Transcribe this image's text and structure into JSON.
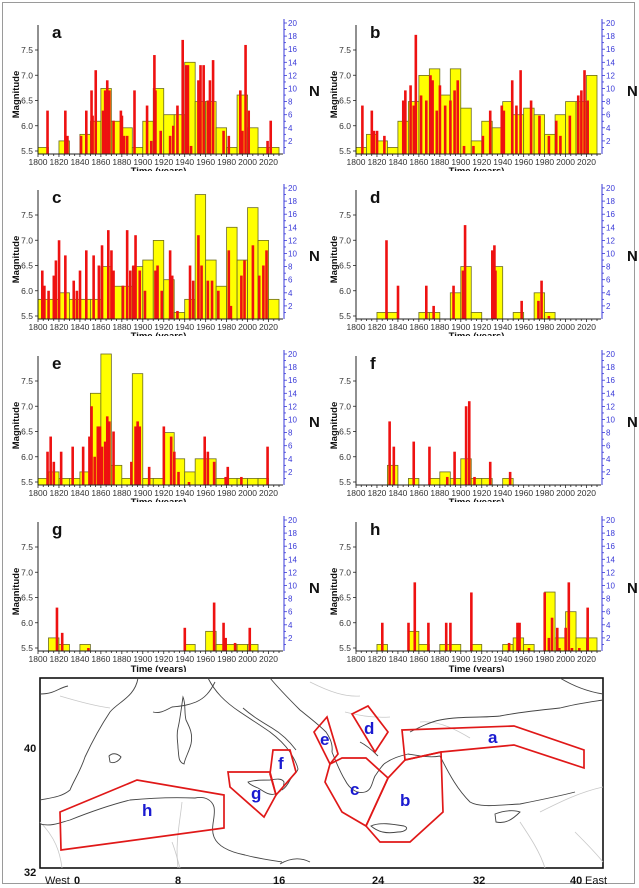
{
  "figure": {
    "map": {
      "lat_labels": [
        "40",
        "32"
      ],
      "lon_labels": [
        "0",
        "8",
        "16",
        "24",
        "32",
        "40"
      ],
      "west_label": "West",
      "east_label": "East",
      "regions": [
        "a",
        "b",
        "c",
        "d",
        "e",
        "f",
        "g",
        "h"
      ]
    }
  },
  "chart_data": [
    {
      "id": "a",
      "type": "bar",
      "title": "a",
      "xlabel": "Time (years)",
      "ylabel": "Magnitude",
      "y2label": "N",
      "xlim": [
        1800,
        2030
      ],
      "ylim": [
        5.4,
        7.9
      ],
      "y2lim": [
        0,
        20
      ],
      "xticks": [
        1800,
        1820,
        1840,
        1860,
        1880,
        1900,
        1920,
        1940,
        1960,
        1980,
        2000,
        2020
      ],
      "yticks": [
        5.5,
        6.0,
        6.5,
        7.0,
        7.5
      ],
      "y2ticks": [
        2,
        4,
        6,
        8,
        10,
        12,
        14,
        16,
        18,
        20
      ],
      "show_xlabel": false,
      "decade_counts": {
        "name": "N (decadal count)",
        "start": [
          1800,
          1820,
          1840,
          1850,
          1860,
          1870,
          1880,
          1890,
          1900,
          1910,
          1920,
          1930,
          1940,
          1950,
          1960,
          1970,
          1980,
          1990,
          2000,
          2010,
          2020
        ],
        "values": [
          1,
          2,
          3,
          5,
          10,
          5,
          4,
          1,
          5,
          10,
          6,
          6,
          14,
          8,
          8,
          4,
          1,
          9,
          4,
          1,
          1
        ]
      },
      "events": {
        "name": "Magnitude",
        "year": [
          1809,
          1826,
          1828,
          1841,
          1846,
          1851,
          1852,
          1855,
          1862,
          1864,
          1866,
          1868,
          1872,
          1879,
          1880,
          1882,
          1885,
          1892,
          1904,
          1908,
          1911,
          1912,
          1917,
          1926,
          1929,
          1933,
          1938,
          1941,
          1943,
          1946,
          1953,
          1955,
          1958,
          1962,
          1964,
          1967,
          1977,
          1982,
          1993,
          1995,
          1998,
          2001,
          2019,
          2022
        ],
        "mag": [
          6.3,
          6.3,
          5.8,
          5.8,
          6.3,
          6.7,
          6.2,
          7.1,
          6.3,
          6.7,
          6.9,
          6.7,
          6.1,
          6.3,
          6.2,
          5.8,
          5.8,
          6.7,
          6.4,
          5.7,
          7.4,
          6.7,
          5.9,
          5.8,
          6.0,
          6.4,
          7.7,
          7.2,
          7.2,
          5.6,
          6.9,
          7.2,
          7.2,
          6.5,
          6.9,
          7.3,
          5.9,
          5.8,
          6.7,
          5.9,
          7.6,
          6.3,
          5.7,
          6.1
        ]
      }
    },
    {
      "id": "b",
      "type": "bar",
      "title": "b",
      "xlabel": "Time (years)",
      "ylabel": "Magnitude",
      "y2label": "N",
      "xlim": [
        1800,
        2030
      ],
      "ylim": [
        5.4,
        7.9
      ],
      "y2lim": [
        0,
        20
      ],
      "xticks": [
        1800,
        1820,
        1840,
        1860,
        1880,
        1900,
        1920,
        1940,
        1960,
        1980,
        2000,
        2020
      ],
      "yticks": [
        5.5,
        6.0,
        6.5,
        7.0,
        7.5
      ],
      "y2ticks": [
        2,
        4,
        6,
        8,
        10,
        12,
        14,
        16,
        18,
        20
      ],
      "show_xlabel": true,
      "decade_counts": {
        "name": "N (decadal count)",
        "start": [
          1800,
          1810,
          1820,
          1830,
          1840,
          1850,
          1860,
          1870,
          1880,
          1890,
          1900,
          1910,
          1920,
          1930,
          1940,
          1950,
          1960,
          1970,
          1980,
          1990,
          2000,
          2010,
          2020
        ],
        "values": [
          1,
          3,
          2,
          1,
          5,
          8,
          12,
          13,
          9,
          13,
          7,
          2,
          5,
          4,
          8,
          6,
          7,
          6,
          3,
          6,
          8,
          8,
          12
        ]
      },
      "events": {
        "name": "Magnitude",
        "year": [
          1806,
          1815,
          1817,
          1820,
          1827,
          1845,
          1847,
          1852,
          1855,
          1857,
          1862,
          1867,
          1871,
          1873,
          1877,
          1880,
          1885,
          1890,
          1894,
          1897,
          1903,
          1912,
          1921,
          1928,
          1939,
          1941,
          1949,
          1953,
          1957,
          1967,
          1975,
          1984,
          1991,
          1995,
          2004,
          2012,
          2015,
          2018,
          2021
        ],
        "mag": [
          6.4,
          6.3,
          5.9,
          5.9,
          5.8,
          6.5,
          6.7,
          6.8,
          6.4,
          7.8,
          6.6,
          6.5,
          7.0,
          6.9,
          6.3,
          6.8,
          6.4,
          6.5,
          6.7,
          6.9,
          5.6,
          5.6,
          5.8,
          6.3,
          6.4,
          6.3,
          6.9,
          6.4,
          7.1,
          6.5,
          6.2,
          5.8,
          6.1,
          5.8,
          6.2,
          6.6,
          6.7,
          7.1,
          6.5
        ]
      }
    },
    {
      "id": "c",
      "type": "bar",
      "title": "c",
      "xlabel": "Time (years)",
      "ylabel": "Magnitude",
      "y2label": "N",
      "xlim": [
        1800,
        2030
      ],
      "ylim": [
        5.4,
        7.9
      ],
      "y2lim": [
        0,
        20
      ],
      "xticks": [
        1800,
        1820,
        1840,
        1860,
        1880,
        1900,
        1920,
        1940,
        1960,
        1980,
        2000,
        2020
      ],
      "yticks": [
        5.5,
        6.0,
        6.5,
        7.0,
        7.5
      ],
      "y2ticks": [
        2,
        4,
        6,
        8,
        10,
        12,
        14,
        16,
        18,
        20
      ],
      "show_xlabel": true,
      "decade_counts": {
        "name": "N (decadal count)",
        "start": [
          1800,
          1810,
          1820,
          1830,
          1840,
          1850,
          1860,
          1870,
          1880,
          1890,
          1900,
          1910,
          1920,
          1930,
          1940,
          1950,
          1960,
          1970,
          1980,
          1990,
          2000,
          2010,
          2020
        ],
        "values": [
          3,
          3,
          4,
          3,
          3,
          3,
          8,
          5,
          5,
          8,
          9,
          12,
          6,
          1,
          3,
          19,
          9,
          5,
          14,
          9,
          17,
          12,
          3
        ]
      },
      "events": {
        "name": "Magnitude",
        "year": [
          1804,
          1806,
          1810,
          1815,
          1817,
          1820,
          1826,
          1834,
          1837,
          1840,
          1846,
          1853,
          1858,
          1861,
          1867,
          1870,
          1872,
          1881,
          1885,
          1888,
          1891,
          1893,
          1897,
          1902,
          1912,
          1914,
          1918,
          1926,
          1928,
          1933,
          1945,
          1948,
          1953,
          1956,
          1962,
          1966,
          1972,
          1982,
          1984,
          1994,
          1997,
          2005,
          2011,
          2015,
          2018
        ],
        "mag": [
          6.4,
          6.1,
          6.0,
          6.3,
          6.6,
          7.0,
          6.7,
          6.2,
          6.0,
          6.4,
          6.8,
          6.7,
          6.5,
          6.9,
          7.2,
          6.8,
          6.4,
          6.1,
          7.2,
          6.4,
          6.5,
          7.1,
          6.4,
          6.0,
          6.4,
          6.5,
          6.0,
          6.8,
          6.3,
          5.6,
          6.5,
          6.2,
          7.1,
          6.5,
          6.2,
          6.2,
          6.0,
          6.8,
          5.7,
          6.3,
          6.6,
          6.9,
          6.3,
          6.5,
          6.8
        ]
      }
    },
    {
      "id": "d",
      "type": "bar",
      "title": "d",
      "xlabel": "Time (years)",
      "ylabel": "Magnitude",
      "y2label": "N",
      "xlim": [
        1800,
        2030
      ],
      "ylim": [
        5.4,
        7.9
      ],
      "y2lim": [
        0,
        20
      ],
      "xticks": [
        1800,
        1820,
        1840,
        1860,
        1880,
        1900,
        1920,
        1940,
        1960,
        1980,
        2000,
        2020
      ],
      "yticks": [
        5.5,
        6.0,
        6.5,
        7.0,
        7.5
      ],
      "y2ticks": [
        2,
        4,
        6,
        8,
        10,
        12,
        14,
        16,
        18,
        20
      ],
      "show_xlabel": true,
      "decade_counts": {
        "name": "N (decadal count)",
        "start": [
          1820,
          1830,
          1860,
          1870,
          1890,
          1900,
          1910,
          1930,
          1950,
          1970,
          1980
        ],
        "values": [
          1,
          1,
          1,
          1,
          4,
          8,
          1,
          8,
          1,
          4,
          1
        ]
      },
      "events": {
        "name": "Magnitude",
        "year": [
          1829,
          1840,
          1867,
          1874,
          1893,
          1902,
          1904,
          1930,
          1932,
          1933,
          1958,
          1974,
          1977,
          1984
        ],
        "mag": [
          7.0,
          6.1,
          6.1,
          5.7,
          6.1,
          6.4,
          7.3,
          6.8,
          6.9,
          6.4,
          5.8,
          5.8,
          6.2,
          5.5
        ]
      }
    },
    {
      "id": "e",
      "type": "bar",
      "title": "e",
      "xlabel": "Time (years)",
      "ylabel": "Magnitude",
      "y2label": "N",
      "xlim": [
        1800,
        2030
      ],
      "ylim": [
        5.4,
        7.9
      ],
      "y2lim": [
        0,
        20
      ],
      "xticks": [
        1800,
        1820,
        1840,
        1860,
        1880,
        1900,
        1920,
        1940,
        1960,
        1980,
        2000,
        2020
      ],
      "yticks": [
        5.5,
        6.0,
        6.5,
        7.0,
        7.5
      ],
      "y2ticks": [
        2,
        4,
        6,
        8,
        10,
        12,
        14,
        16,
        18,
        20
      ],
      "show_xlabel": true,
      "decade_counts": {
        "name": "N (decadal count)",
        "start": [
          1800,
          1810,
          1820,
          1830,
          1840,
          1850,
          1860,
          1870,
          1880,
          1890,
          1900,
          1910,
          1920,
          1930,
          1940,
          1950,
          1960,
          1970,
          1980,
          1990,
          2000,
          2010
        ],
        "values": [
          1,
          2,
          1,
          1,
          2,
          14,
          20,
          3,
          1,
          17,
          1,
          1,
          8,
          4,
          2,
          4,
          4,
          1,
          1,
          1,
          1,
          1
        ]
      },
      "events": {
        "name": "Magnitude",
        "year": [
          1809,
          1812,
          1815,
          1822,
          1833,
          1843,
          1849,
          1851,
          1854,
          1857,
          1859,
          1861,
          1864,
          1866,
          1868,
          1872,
          1889,
          1893,
          1895,
          1897,
          1906,
          1920,
          1927,
          1930,
          1934,
          1944,
          1959,
          1962,
          1968,
          1979,
          1981,
          1994,
          2019
        ],
        "mag": [
          6.1,
          6.4,
          5.9,
          6.1,
          6.2,
          6.2,
          6.4,
          7.0,
          6.0,
          6.6,
          6.6,
          6.2,
          6.3,
          6.8,
          6.7,
          6.5,
          5.9,
          6.6,
          6.7,
          6.6,
          5.8,
          6.6,
          6.4,
          6.1,
          5.7,
          5.5,
          6.4,
          6.1,
          5.9,
          5.6,
          5.8,
          5.6,
          6.2
        ]
      }
    },
    {
      "id": "f",
      "type": "bar",
      "title": "f",
      "xlabel": "Time (years)",
      "ylabel": "Magnitude",
      "y2label": "N",
      "xlim": [
        1800,
        2030
      ],
      "ylim": [
        5.4,
        7.9
      ],
      "y2lim": [
        0,
        20
      ],
      "xticks": [
        1800,
        1820,
        1840,
        1860,
        1880,
        1900,
        1920,
        1940,
        1960,
        1980,
        2000,
        2020
      ],
      "yticks": [
        5.5,
        6.0,
        6.5,
        7.0,
        7.5
      ],
      "y2ticks": [
        2,
        4,
        6,
        8,
        10,
        12,
        14,
        16,
        18,
        20
      ],
      "show_xlabel": true,
      "decade_counts": {
        "name": "N (decadal count)",
        "start": [
          1830,
          1850,
          1870,
          1880,
          1890,
          1900,
          1910,
          1920,
          1940
        ],
        "values": [
          3,
          1,
          1,
          2,
          1,
          4,
          1,
          1,
          1
        ]
      },
      "events": {
        "name": "Magnitude",
        "year": [
          1832,
          1836,
          1855,
          1870,
          1887,
          1894,
          1905,
          1908,
          1913,
          1928,
          1947
        ],
        "mag": [
          6.7,
          6.2,
          6.3,
          6.2,
          5.6,
          6.1,
          7.0,
          7.1,
          5.6,
          5.9,
          5.7
        ]
      }
    },
    {
      "id": "g",
      "type": "bar",
      "title": "g",
      "xlabel": "Time (years)",
      "ylabel": "Magnitude",
      "y2label": "N",
      "xlim": [
        1800,
        2030
      ],
      "ylim": [
        5.4,
        7.9
      ],
      "y2lim": [
        0,
        20
      ],
      "xticks": [
        1800,
        1820,
        1840,
        1860,
        1880,
        1900,
        1920,
        1940,
        1960,
        1980,
        2000,
        2020
      ],
      "yticks": [
        5.5,
        6.0,
        6.5,
        7.0,
        7.5
      ],
      "y2ticks": [
        2,
        4,
        6,
        8,
        10,
        12,
        14,
        16,
        18,
        20
      ],
      "show_xlabel": true,
      "decade_counts": {
        "name": "N (decadal count)",
        "start": [
          1810,
          1820,
          1840,
          1940,
          1960,
          1970,
          1980,
          1990,
          2000
        ],
        "values": [
          2,
          1,
          1,
          1,
          3,
          1,
          1,
          1,
          1
        ]
      },
      "events": {
        "name": "Magnitude",
        "year": [
          1818,
          1823,
          1848,
          1940,
          1968,
          1977,
          1979,
          1988,
          2002
        ],
        "mag": [
          6.3,
          5.8,
          5.5,
          5.9,
          6.4,
          6.0,
          5.7,
          5.6,
          5.9
        ]
      }
    },
    {
      "id": "h",
      "type": "bar",
      "title": "h",
      "xlabel": "Time (years)",
      "ylabel": "Magnitude",
      "y2label": "N",
      "xlim": [
        1800,
        2030
      ],
      "ylim": [
        5.4,
        7.9
      ],
      "y2lim": [
        0,
        20
      ],
      "xticks": [
        1800,
        1820,
        1840,
        1860,
        1880,
        1900,
        1920,
        1940,
        1960,
        1980,
        2000,
        2020
      ],
      "yticks": [
        5.5,
        6.0,
        6.5,
        7.0,
        7.5
      ],
      "y2ticks": [
        2,
        4,
        6,
        8,
        10,
        12,
        14,
        16,
        18,
        20
      ],
      "show_xlabel": true,
      "decade_counts": {
        "name": "N (decadal count)",
        "start": [
          1820,
          1850,
          1860,
          1880,
          1890,
          1910,
          1940,
          1950,
          1960,
          1980,
          1990,
          2000,
          2010,
          2020
        ],
        "values": [
          1,
          3,
          1,
          1,
          1,
          1,
          1,
          2,
          1,
          9,
          2,
          6,
          2,
          2
        ]
      },
      "events": {
        "name": "Magnitude",
        "year": [
          1825,
          1850,
          1856,
          1869,
          1886,
          1890,
          1910,
          1946,
          1954,
          1956,
          1965,
          1980,
          1984,
          1987,
          1992,
          1994,
          2000,
          2003,
          2006,
          2013,
          2021
        ],
        "mag": [
          6.0,
          6.0,
          6.8,
          6.0,
          6.0,
          6.0,
          6.6,
          5.6,
          6.0,
          6.0,
          5.5,
          6.6,
          5.7,
          6.1,
          5.9,
          5.5,
          5.9,
          6.8,
          5.5,
          5.5,
          6.3
        ]
      }
    }
  ]
}
